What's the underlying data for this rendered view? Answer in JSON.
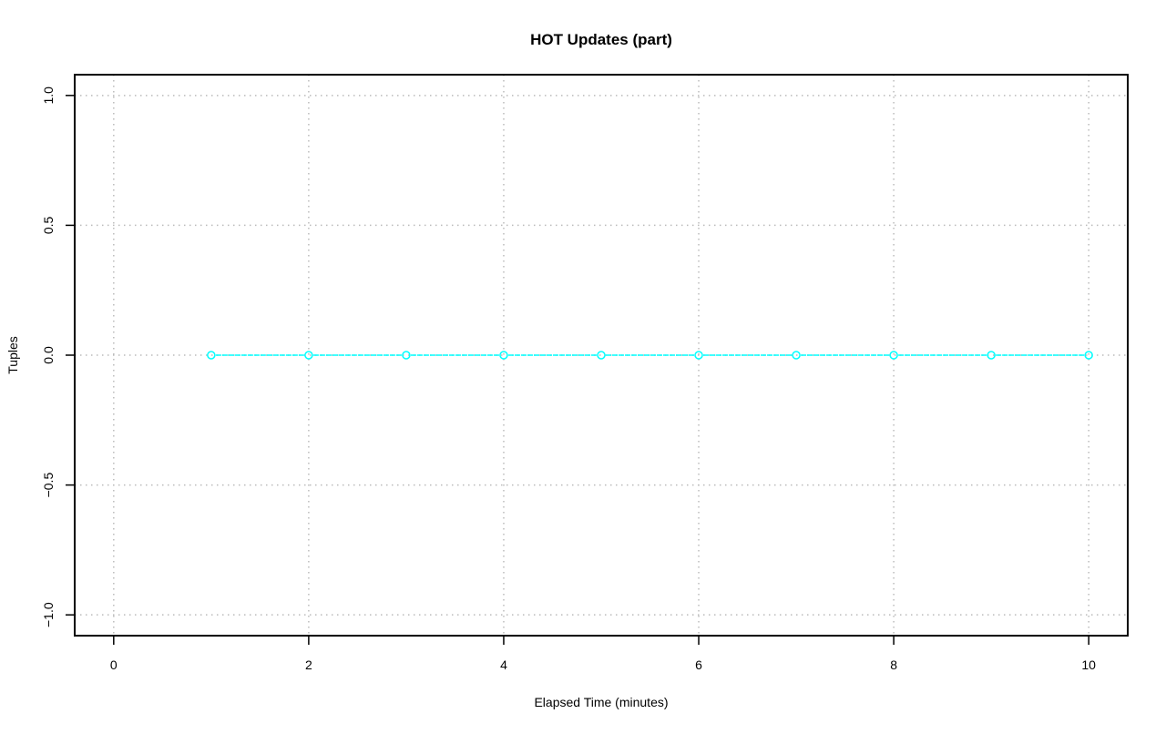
{
  "chart_data": {
    "type": "line",
    "title": "HOT Updates (part)",
    "xlabel": "Elapsed Time (minutes)",
    "ylabel": "Tuples",
    "xlim": [
      -0.4,
      10.4
    ],
    "ylim": [
      -1.08,
      1.08
    ],
    "x_ticks": [
      0,
      2,
      4,
      6,
      8,
      10
    ],
    "x_tick_labels": [
      "0",
      "2",
      "4",
      "6",
      "8",
      "10"
    ],
    "y_ticks": [
      -1.0,
      -0.5,
      0.0,
      0.5,
      1.0
    ],
    "y_tick_labels": [
      "−1.0",
      "−0.5",
      "0.0",
      "0.5",
      "1.0"
    ],
    "grid": true,
    "grid_x": [
      0,
      2,
      4,
      6,
      8,
      10
    ],
    "grid_y": [
      -1.0,
      -0.5,
      0.0,
      0.5,
      1.0
    ],
    "series": [
      {
        "color": "#00ffff",
        "marker": "open-circle",
        "x": [
          1,
          2,
          3,
          4,
          5,
          6,
          7,
          8,
          9,
          10
        ],
        "y": [
          0,
          0,
          0,
          0,
          0,
          0,
          0,
          0,
          0,
          0
        ]
      }
    ]
  }
}
